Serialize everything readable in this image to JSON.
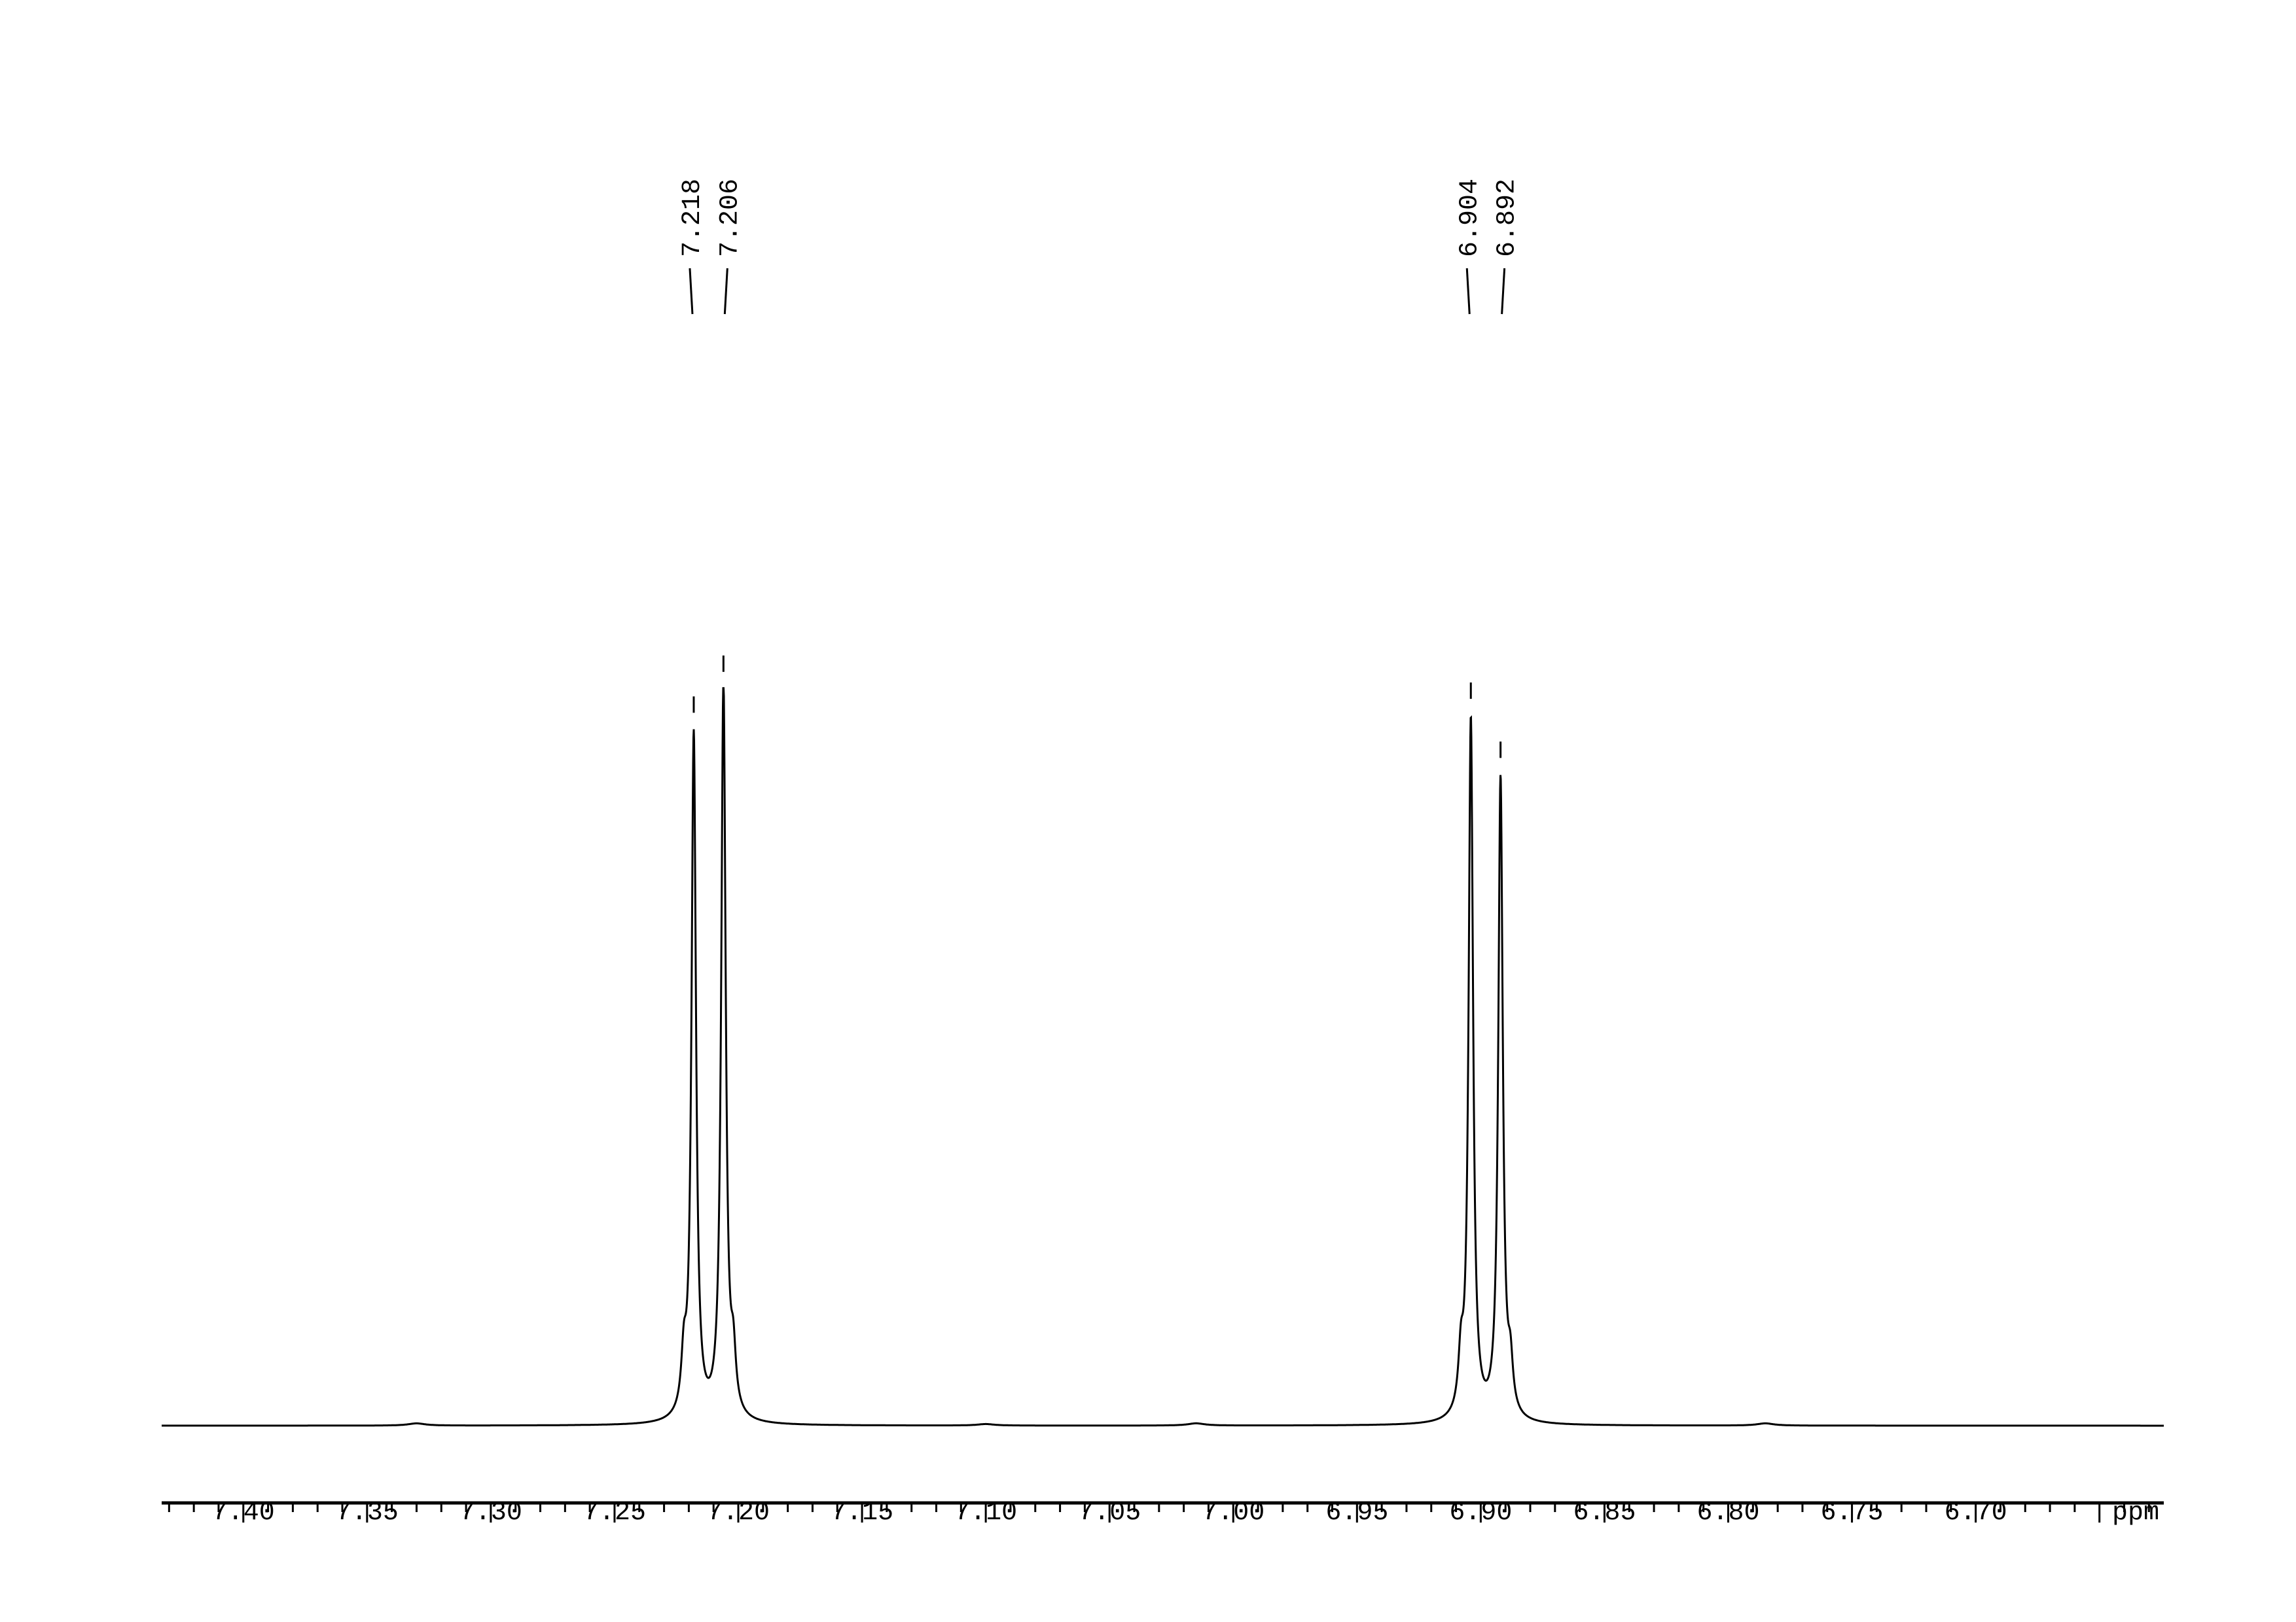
{
  "chart_data": {
    "type": "line",
    "title": "",
    "xlabel": "ppm",
    "ylabel": "",
    "xlim": [
      7.433,
      6.624
    ],
    "x_reversed": true,
    "grid": false,
    "x_ticks": [
      "7.40",
      "7.35",
      "7.30",
      "7.25",
      "7.20",
      "7.15",
      "7.10",
      "7.05",
      "7.00",
      "6.95",
      "6.90",
      "6.85",
      "6.80",
      "6.75",
      "6.70"
    ],
    "minor_tick_step": 0.01,
    "line_color": "#000000",
    "peaks": [
      {
        "ppm": 7.218,
        "label": "7.218",
        "intensity": 0.93
      },
      {
        "ppm": 7.206,
        "label": "7.206",
        "intensity": 1.0
      },
      {
        "ppm": 6.904,
        "label": "6.904",
        "intensity": 0.95
      },
      {
        "ppm": 6.892,
        "label": "6.892",
        "intensity": 0.87
      }
    ],
    "minor_features": [
      {
        "ppm": 7.222,
        "intensity": 0.07
      },
      {
        "ppm": 7.202,
        "intensity": 0.07
      },
      {
        "ppm": 6.908,
        "intensity": 0.07
      },
      {
        "ppm": 6.888,
        "intensity": 0.06
      },
      {
        "ppm": 7.33,
        "intensity": 0.003
      },
      {
        "ppm": 7.1,
        "intensity": 0.002
      },
      {
        "ppm": 7.015,
        "intensity": 0.003
      },
      {
        "ppm": 6.785,
        "intensity": 0.003
      }
    ]
  }
}
